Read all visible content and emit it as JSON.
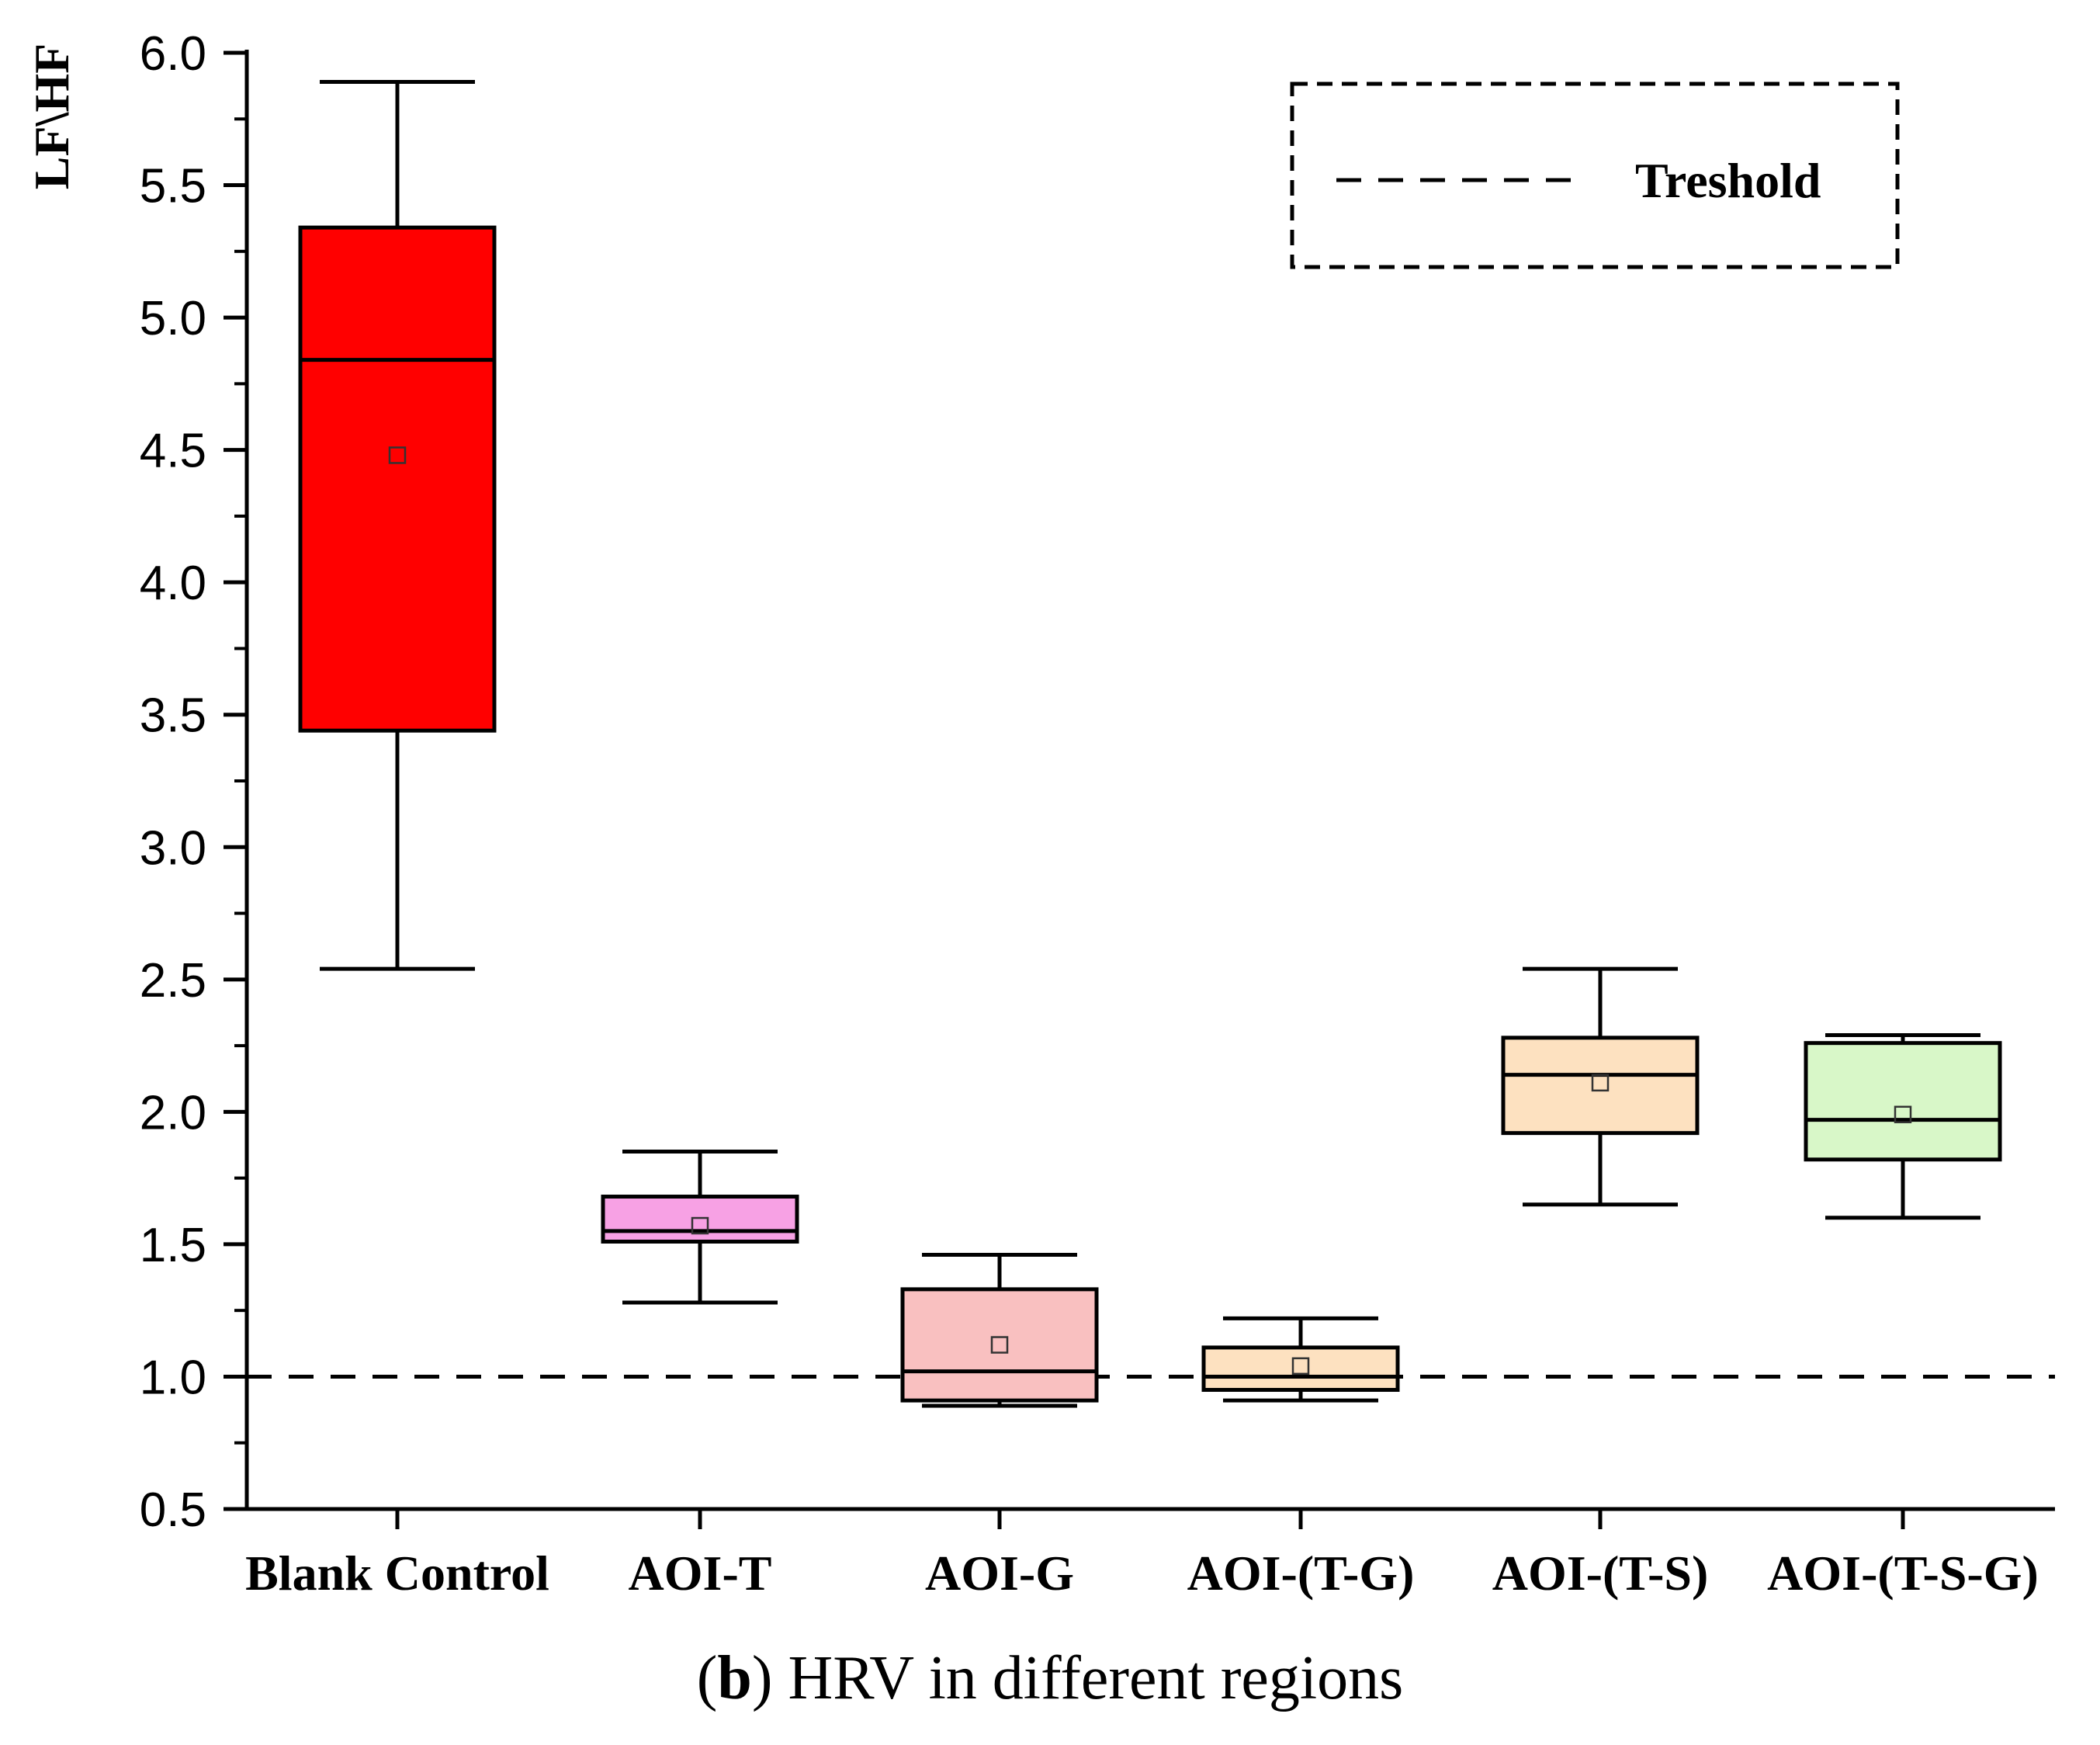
{
  "chart_data": {
    "type": "box",
    "title": "",
    "caption": {
      "open_paren": "(",
      "letter": "b",
      "close_paren": ")",
      "text": " HRV in different regions"
    },
    "xlabel": "",
    "ylabel": "LF\\HF",
    "ylim": [
      0.5,
      6.0
    ],
    "yticks": [
      "0.5",
      "1.0",
      "1.5",
      "2.0",
      "2.5",
      "3.0",
      "3.5",
      "4.0",
      "4.5",
      "5.0",
      "5.5",
      "6.0"
    ],
    "yticks_values": [
      0.5,
      1.0,
      1.5,
      2.0,
      2.5,
      3.0,
      3.5,
      4.0,
      4.5,
      5.0,
      5.5,
      6.0
    ],
    "categories": [
      "Blank Control",
      "AOI-T",
      "AOI-G",
      "AOI-(T-G)",
      "AOI-(T-S)",
      "AOI-(T-S-G)"
    ],
    "boxes": [
      {
        "category": "Blank Control",
        "whisker_low": 2.54,
        "q1": 3.44,
        "median": 4.84,
        "q3": 5.34,
        "whisker_high": 5.89,
        "mean": 4.48,
        "color": "#ff0000"
      },
      {
        "category": "AOI-T",
        "whisker_low": 1.28,
        "q1": 1.51,
        "median": 1.55,
        "q3": 1.68,
        "whisker_high": 1.85,
        "mean": 1.57,
        "color": "#f7a1e4"
      },
      {
        "category": "AOI-G",
        "whisker_low": 0.89,
        "q1": 0.91,
        "median": 1.02,
        "q3": 1.33,
        "whisker_high": 1.46,
        "mean": 1.12,
        "color": "#f9c0c0"
      },
      {
        "category": "AOI-(T-G)",
        "whisker_low": 0.91,
        "q1": 0.95,
        "median": 1.0,
        "q3": 1.11,
        "whisker_high": 1.22,
        "mean": 1.04,
        "color": "#fde1c0"
      },
      {
        "category": "AOI-(T-S)",
        "whisker_low": 1.65,
        "q1": 1.92,
        "median": 2.14,
        "q3": 2.28,
        "whisker_high": 2.54,
        "mean": 2.11,
        "color": "#fde1c0"
      },
      {
        "category": "AOI-(T-S-G)",
        "whisker_low": 1.6,
        "q1": 1.82,
        "median": 1.97,
        "q3": 2.26,
        "whisker_high": 2.29,
        "mean": 1.99,
        "color": "#d8f7c8"
      }
    ],
    "threshold": {
      "value": 1.0,
      "label": "Treshold",
      "style": "dashed"
    },
    "legend": {
      "position": "top-right",
      "entries": [
        "Treshold"
      ]
    },
    "grid": false
  }
}
